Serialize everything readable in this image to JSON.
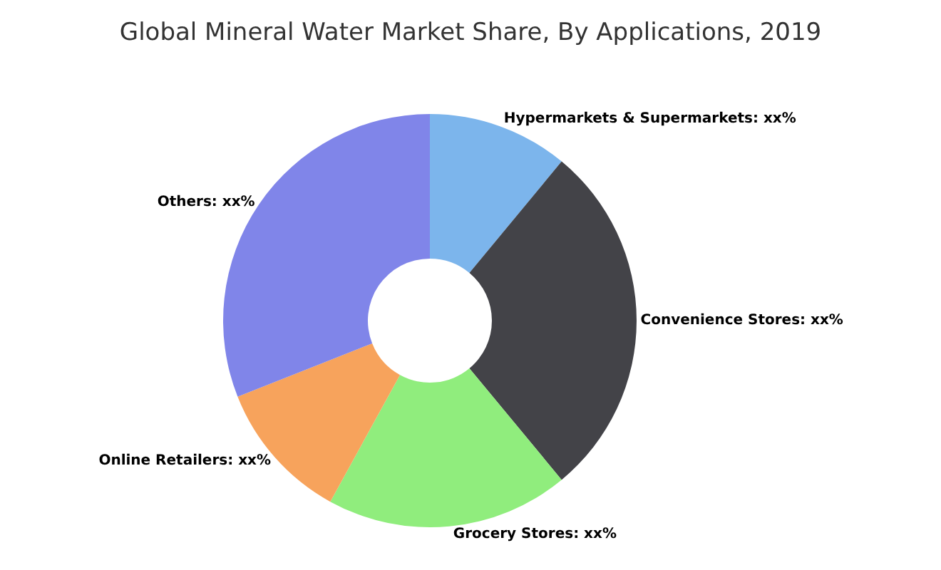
{
  "chart_data": {
    "type": "donut",
    "title": "Global Mineral Water Market Share, By Applications, 2019",
    "categories": [
      "Hypermarkets & Supermarkets",
      "Convenience Stores",
      "Grocery Stores",
      "Online Retailers",
      "Others"
    ],
    "values": [
      11,
      28,
      19,
      11,
      31
    ],
    "colors": [
      "#7cb5ec",
      "#434348",
      "#90ed7d",
      "#f7a35c",
      "#8085e9"
    ],
    "value_labels": [
      "xx%",
      "xx%",
      "xx%",
      "xx%",
      "xx%"
    ],
    "legend": false
  }
}
